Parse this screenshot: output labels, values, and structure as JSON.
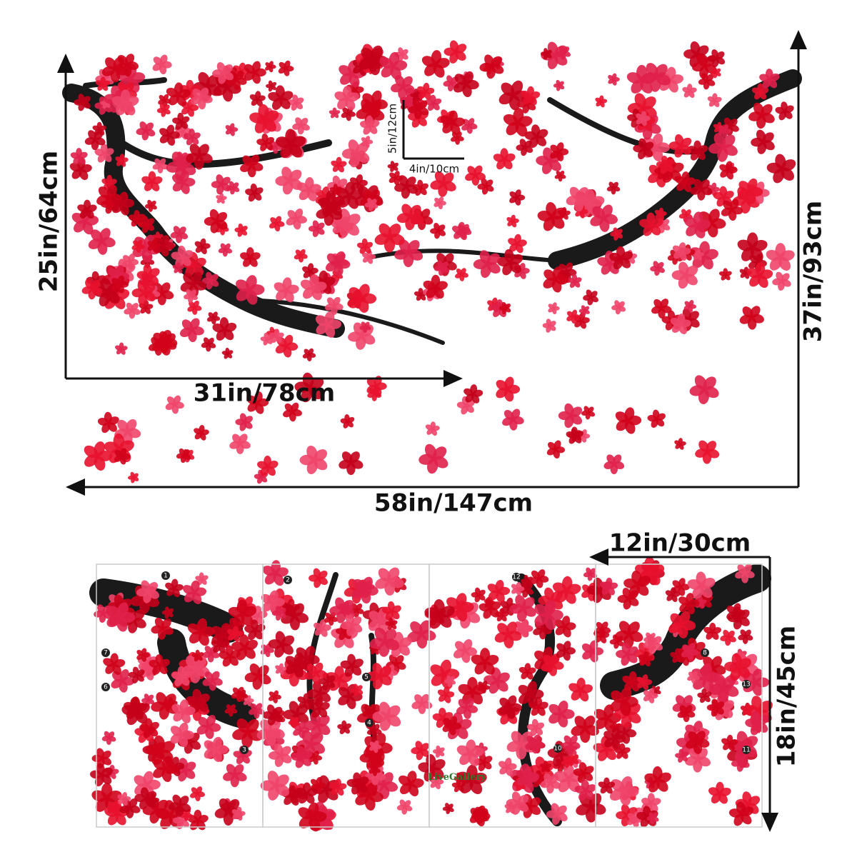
{
  "top": {
    "height_left": "25in/64cm",
    "width_left": "31in/78cm",
    "height_total": "37in/93cm",
    "width_total": "58in/147cm",
    "bird_height": "5in/12cm",
    "bird_width": "4in/10cm"
  },
  "sheets": {
    "sheet_width": "12in/30cm",
    "sheet_height": "18in/45cm",
    "brand": "LiveGallery",
    "numbers": [
      "1",
      "7",
      "6",
      "3",
      "2",
      "5",
      "4",
      "12",
      "10",
      "8",
      "13",
      "11"
    ]
  }
}
